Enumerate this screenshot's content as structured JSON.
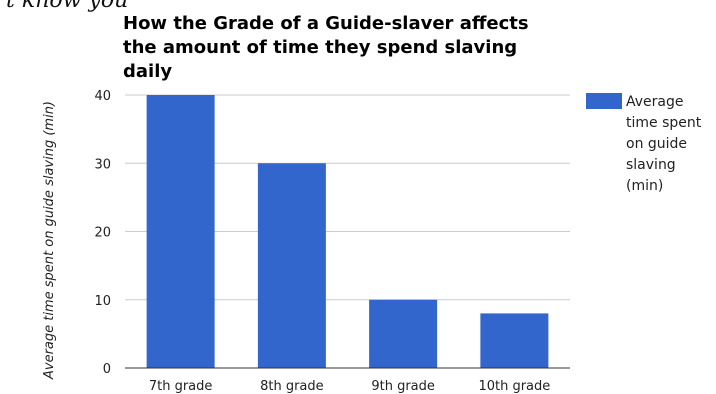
{
  "page_header_fragment": "'t know you",
  "chart_data": {
    "type": "bar",
    "title": "How the Grade of a Guide-slaver affects the amount of time they spend slaving daily",
    "xlabel": "",
    "ylabel": "Average time spent on guide slaving (min)",
    "categories": [
      "7th grade",
      "8th grade",
      "9th grade",
      "10th grade"
    ],
    "series": [
      {
        "name": "Average time spent on guide slaving (min)",
        "values": [
          40,
          30,
          10,
          8
        ],
        "color": "#3366cc"
      }
    ],
    "ylim": [
      0,
      40
    ],
    "yticks": [
      0,
      10,
      20,
      30,
      40
    ],
    "grid": true,
    "legend_position": "right"
  }
}
